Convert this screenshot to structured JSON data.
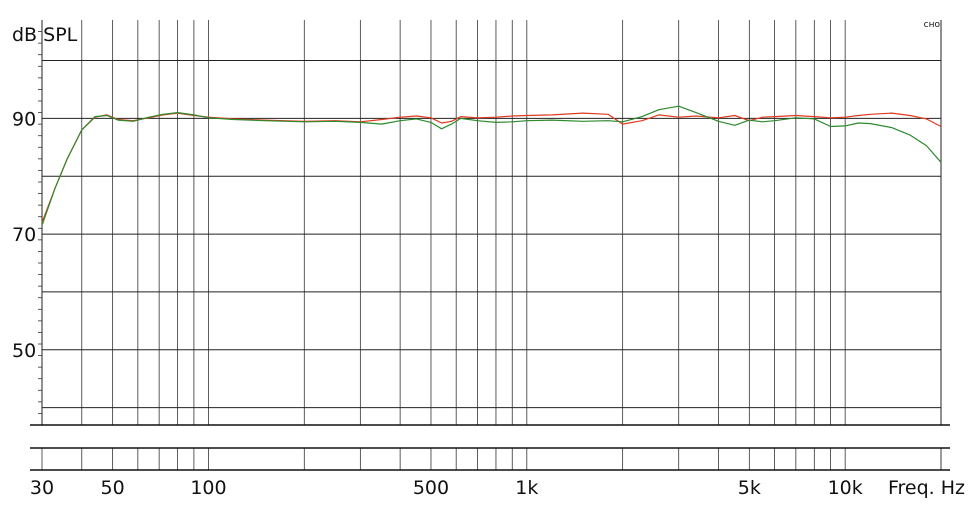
{
  "chart_data": {
    "type": "line",
    "ylabel": "dB SPL",
    "xlabel": "Freq. Hz",
    "corner_mark": "сно",
    "x_scale": "log",
    "xlim": [
      30,
      20000
    ],
    "ylim": [
      37,
      107
    ],
    "y_ticks": [
      50,
      70,
      90
    ],
    "x_ticks": [
      {
        "value": 30,
        "label": "30"
      },
      {
        "value": 50,
        "label": "50"
      },
      {
        "value": 100,
        "label": "100"
      },
      {
        "value": 500,
        "label": "500"
      },
      {
        "value": 1000,
        "label": "1k"
      },
      {
        "value": 5000,
        "label": "5k"
      },
      {
        "value": 10000,
        "label": "10k"
      }
    ],
    "grid": true,
    "series": [
      {
        "color": "#e03a1e",
        "x": [
          30,
          33,
          36,
          40,
          44,
          48,
          52,
          58,
          65,
          72,
          80,
          90,
          100,
          120,
          150,
          200,
          250,
          300,
          350,
          400,
          450,
          500,
          540,
          580,
          620,
          700,
          800,
          900,
          1000,
          1200,
          1500,
          1800,
          2000,
          2300,
          2600,
          3000,
          3400,
          4000,
          4500,
          5000,
          5500,
          6000,
          7000,
          8000,
          9000,
          10000,
          11000,
          12000,
          14000,
          16000,
          18000,
          20000
        ],
        "values": [
          72,
          78,
          83,
          88,
          90.2,
          90.6,
          89.8,
          89.6,
          90.1,
          90.6,
          90.9,
          90.5,
          90.2,
          89.9,
          89.7,
          89.5,
          89.6,
          89.4,
          89.8,
          90.2,
          90.4,
          90.1,
          89.2,
          89.5,
          90.3,
          90.1,
          90.2,
          90.4,
          90.5,
          90.6,
          90.9,
          90.7,
          89.0,
          89.6,
          90.6,
          90.2,
          90.4,
          90.1,
          90.5,
          89.6,
          90.2,
          90.3,
          90.5,
          90.3,
          90.1,
          90.2,
          90.5,
          90.7,
          90.9,
          90.5,
          89.9,
          88.6
        ]
      },
      {
        "color": "#2d8a2d",
        "x": [
          30,
          33,
          36,
          40,
          44,
          48,
          52,
          58,
          65,
          72,
          80,
          90,
          100,
          120,
          150,
          200,
          250,
          300,
          350,
          400,
          450,
          500,
          540,
          580,
          620,
          700,
          800,
          900,
          1000,
          1200,
          1500,
          1800,
          2000,
          2300,
          2600,
          3000,
          3400,
          4000,
          4500,
          5000,
          5500,
          6000,
          7000,
          8000,
          9000,
          10000,
          11000,
          12000,
          14000,
          16000,
          18000,
          20000
        ],
        "values": [
          71.5,
          78,
          83,
          88,
          90.3,
          90.5,
          89.7,
          89.5,
          90.2,
          90.7,
          91.0,
          90.6,
          90.1,
          89.8,
          89.6,
          89.4,
          89.5,
          89.3,
          89.0,
          89.6,
          89.9,
          89.3,
          88.2,
          89.0,
          90.0,
          89.6,
          89.3,
          89.4,
          89.6,
          89.7,
          89.5,
          89.6,
          89.4,
          90.3,
          91.5,
          92.1,
          91.0,
          89.5,
          88.8,
          89.7,
          89.4,
          89.6,
          90.1,
          89.9,
          88.6,
          88.7,
          89.2,
          89.1,
          88.4,
          87.1,
          85.3,
          82.4
        ]
      }
    ]
  }
}
